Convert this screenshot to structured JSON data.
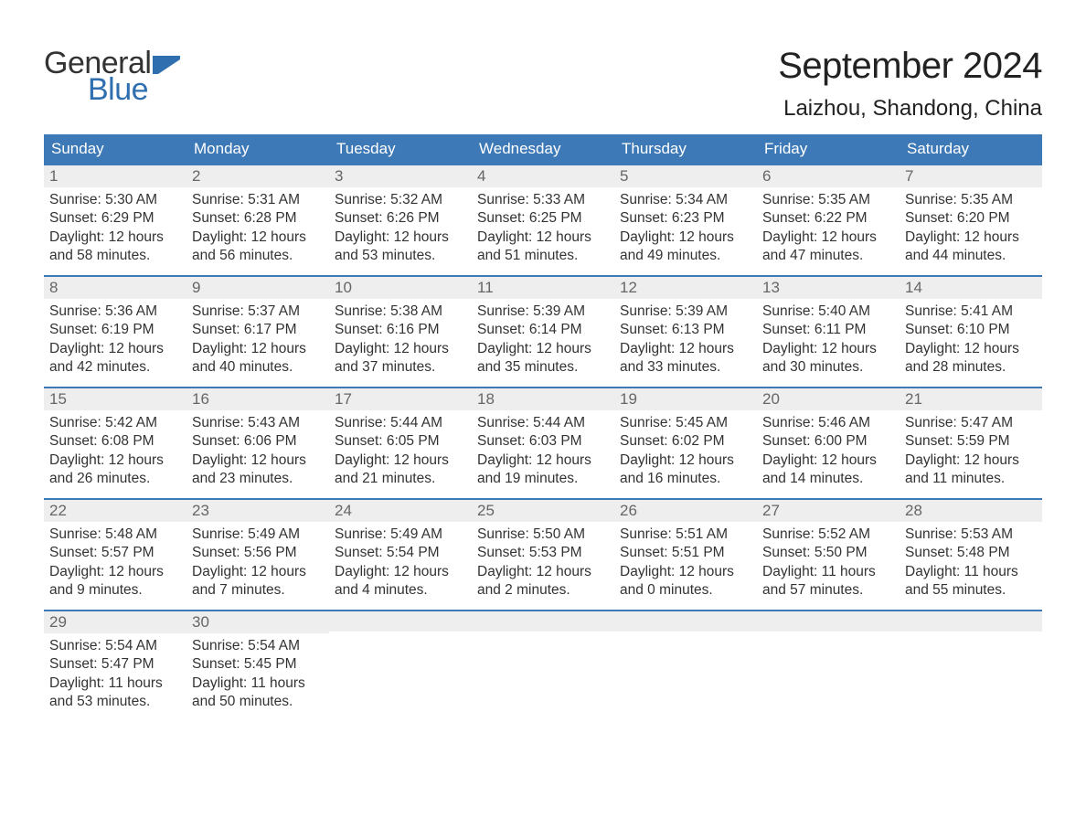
{
  "logo": {
    "text_top": "General",
    "text_bottom": "Blue"
  },
  "title": "September 2024",
  "location": "Laizhou, Shandong, China",
  "colors": {
    "header_bg": "#3d79b6",
    "header_text": "#ffffff",
    "daynum_bg": "#eeeeee",
    "daynum_border": "#3d79b6",
    "daynum_text": "#666666",
    "body_text": "#333333",
    "logo_top": "#333333",
    "logo_bottom": "#2f6fb0",
    "background": "#ffffff"
  },
  "typography": {
    "title_fontsize": 40,
    "location_fontsize": 24,
    "dayheader_fontsize": 17,
    "daynum_fontsize": 17,
    "body_fontsize": 15.5,
    "font_family": "Arial"
  },
  "day_headers": [
    "Sunday",
    "Monday",
    "Tuesday",
    "Wednesday",
    "Thursday",
    "Friday",
    "Saturday"
  ],
  "weeks": [
    [
      {
        "n": "1",
        "sunrise": "Sunrise: 5:30 AM",
        "sunset": "Sunset: 6:29 PM",
        "d1": "Daylight: 12 hours",
        "d2": "and 58 minutes."
      },
      {
        "n": "2",
        "sunrise": "Sunrise: 5:31 AM",
        "sunset": "Sunset: 6:28 PM",
        "d1": "Daylight: 12 hours",
        "d2": "and 56 minutes."
      },
      {
        "n": "3",
        "sunrise": "Sunrise: 5:32 AM",
        "sunset": "Sunset: 6:26 PM",
        "d1": "Daylight: 12 hours",
        "d2": "and 53 minutes."
      },
      {
        "n": "4",
        "sunrise": "Sunrise: 5:33 AM",
        "sunset": "Sunset: 6:25 PM",
        "d1": "Daylight: 12 hours",
        "d2": "and 51 minutes."
      },
      {
        "n": "5",
        "sunrise": "Sunrise: 5:34 AM",
        "sunset": "Sunset: 6:23 PM",
        "d1": "Daylight: 12 hours",
        "d2": "and 49 minutes."
      },
      {
        "n": "6",
        "sunrise": "Sunrise: 5:35 AM",
        "sunset": "Sunset: 6:22 PM",
        "d1": "Daylight: 12 hours",
        "d2": "and 47 minutes."
      },
      {
        "n": "7",
        "sunrise": "Sunrise: 5:35 AM",
        "sunset": "Sunset: 6:20 PM",
        "d1": "Daylight: 12 hours",
        "d2": "and 44 minutes."
      }
    ],
    [
      {
        "n": "8",
        "sunrise": "Sunrise: 5:36 AM",
        "sunset": "Sunset: 6:19 PM",
        "d1": "Daylight: 12 hours",
        "d2": "and 42 minutes."
      },
      {
        "n": "9",
        "sunrise": "Sunrise: 5:37 AM",
        "sunset": "Sunset: 6:17 PM",
        "d1": "Daylight: 12 hours",
        "d2": "and 40 minutes."
      },
      {
        "n": "10",
        "sunrise": "Sunrise: 5:38 AM",
        "sunset": "Sunset: 6:16 PM",
        "d1": "Daylight: 12 hours",
        "d2": "and 37 minutes."
      },
      {
        "n": "11",
        "sunrise": "Sunrise: 5:39 AM",
        "sunset": "Sunset: 6:14 PM",
        "d1": "Daylight: 12 hours",
        "d2": "and 35 minutes."
      },
      {
        "n": "12",
        "sunrise": "Sunrise: 5:39 AM",
        "sunset": "Sunset: 6:13 PM",
        "d1": "Daylight: 12 hours",
        "d2": "and 33 minutes."
      },
      {
        "n": "13",
        "sunrise": "Sunrise: 5:40 AM",
        "sunset": "Sunset: 6:11 PM",
        "d1": "Daylight: 12 hours",
        "d2": "and 30 minutes."
      },
      {
        "n": "14",
        "sunrise": "Sunrise: 5:41 AM",
        "sunset": "Sunset: 6:10 PM",
        "d1": "Daylight: 12 hours",
        "d2": "and 28 minutes."
      }
    ],
    [
      {
        "n": "15",
        "sunrise": "Sunrise: 5:42 AM",
        "sunset": "Sunset: 6:08 PM",
        "d1": "Daylight: 12 hours",
        "d2": "and 26 minutes."
      },
      {
        "n": "16",
        "sunrise": "Sunrise: 5:43 AM",
        "sunset": "Sunset: 6:06 PM",
        "d1": "Daylight: 12 hours",
        "d2": "and 23 minutes."
      },
      {
        "n": "17",
        "sunrise": "Sunrise: 5:44 AM",
        "sunset": "Sunset: 6:05 PM",
        "d1": "Daylight: 12 hours",
        "d2": "and 21 minutes."
      },
      {
        "n": "18",
        "sunrise": "Sunrise: 5:44 AM",
        "sunset": "Sunset: 6:03 PM",
        "d1": "Daylight: 12 hours",
        "d2": "and 19 minutes."
      },
      {
        "n": "19",
        "sunrise": "Sunrise: 5:45 AM",
        "sunset": "Sunset: 6:02 PM",
        "d1": "Daylight: 12 hours",
        "d2": "and 16 minutes."
      },
      {
        "n": "20",
        "sunrise": "Sunrise: 5:46 AM",
        "sunset": "Sunset: 6:00 PM",
        "d1": "Daylight: 12 hours",
        "d2": "and 14 minutes."
      },
      {
        "n": "21",
        "sunrise": "Sunrise: 5:47 AM",
        "sunset": "Sunset: 5:59 PM",
        "d1": "Daylight: 12 hours",
        "d2": "and 11 minutes."
      }
    ],
    [
      {
        "n": "22",
        "sunrise": "Sunrise: 5:48 AM",
        "sunset": "Sunset: 5:57 PM",
        "d1": "Daylight: 12 hours",
        "d2": "and 9 minutes."
      },
      {
        "n": "23",
        "sunrise": "Sunrise: 5:49 AM",
        "sunset": "Sunset: 5:56 PM",
        "d1": "Daylight: 12 hours",
        "d2": "and 7 minutes."
      },
      {
        "n": "24",
        "sunrise": "Sunrise: 5:49 AM",
        "sunset": "Sunset: 5:54 PM",
        "d1": "Daylight: 12 hours",
        "d2": "and 4 minutes."
      },
      {
        "n": "25",
        "sunrise": "Sunrise: 5:50 AM",
        "sunset": "Sunset: 5:53 PM",
        "d1": "Daylight: 12 hours",
        "d2": "and 2 minutes."
      },
      {
        "n": "26",
        "sunrise": "Sunrise: 5:51 AM",
        "sunset": "Sunset: 5:51 PM",
        "d1": "Daylight: 12 hours",
        "d2": "and 0 minutes."
      },
      {
        "n": "27",
        "sunrise": "Sunrise: 5:52 AM",
        "sunset": "Sunset: 5:50 PM",
        "d1": "Daylight: 11 hours",
        "d2": "and 57 minutes."
      },
      {
        "n": "28",
        "sunrise": "Sunrise: 5:53 AM",
        "sunset": "Sunset: 5:48 PM",
        "d1": "Daylight: 11 hours",
        "d2": "and 55 minutes."
      }
    ],
    [
      {
        "n": "29",
        "sunrise": "Sunrise: 5:54 AM",
        "sunset": "Sunset: 5:47 PM",
        "d1": "Daylight: 11 hours",
        "d2": "and 53 minutes."
      },
      {
        "n": "30",
        "sunrise": "Sunrise: 5:54 AM",
        "sunset": "Sunset: 5:45 PM",
        "d1": "Daylight: 11 hours",
        "d2": "and 50 minutes."
      },
      {
        "empty": true
      },
      {
        "empty": true
      },
      {
        "empty": true
      },
      {
        "empty": true
      },
      {
        "empty": true
      }
    ]
  ]
}
